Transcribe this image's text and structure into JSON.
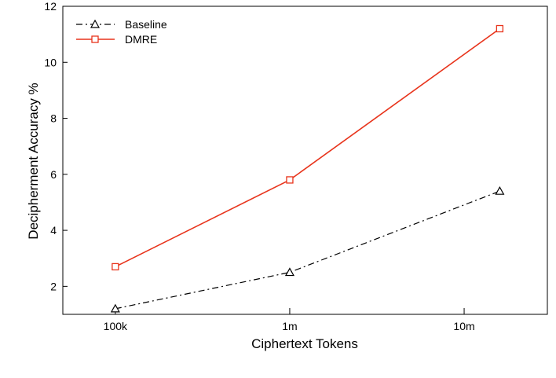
{
  "chart_data": {
    "type": "line",
    "title": "",
    "xlabel": "Ciphertext Tokens",
    "ylabel": "Decipherment Accuracy %",
    "x_scale": "log",
    "xlim": [
      50000,
      30000000
    ],
    "ylim": [
      1.0,
      12.0
    ],
    "x_ticks": [
      100000,
      1000000,
      10000000
    ],
    "x_tick_labels": [
      "100k",
      "1m",
      "10m"
    ],
    "y_ticks": [
      2,
      4,
      6,
      8,
      10,
      12
    ],
    "y_tick_labels": [
      "2",
      "4",
      "6",
      "8",
      "10",
      "12"
    ],
    "x": [
      100000,
      1000000,
      16000000
    ],
    "series": [
      {
        "name": "Baseline",
        "values": [
          1.2,
          2.5,
          5.4
        ],
        "color": "#000000",
        "line_style": "dash-dot",
        "marker": "triangle"
      },
      {
        "name": "DMRE",
        "values": [
          2.7,
          5.8,
          11.2
        ],
        "color": "#e8341c",
        "line_style": "solid",
        "marker": "square"
      }
    ],
    "legend_position": "top-left",
    "grid": false
  }
}
